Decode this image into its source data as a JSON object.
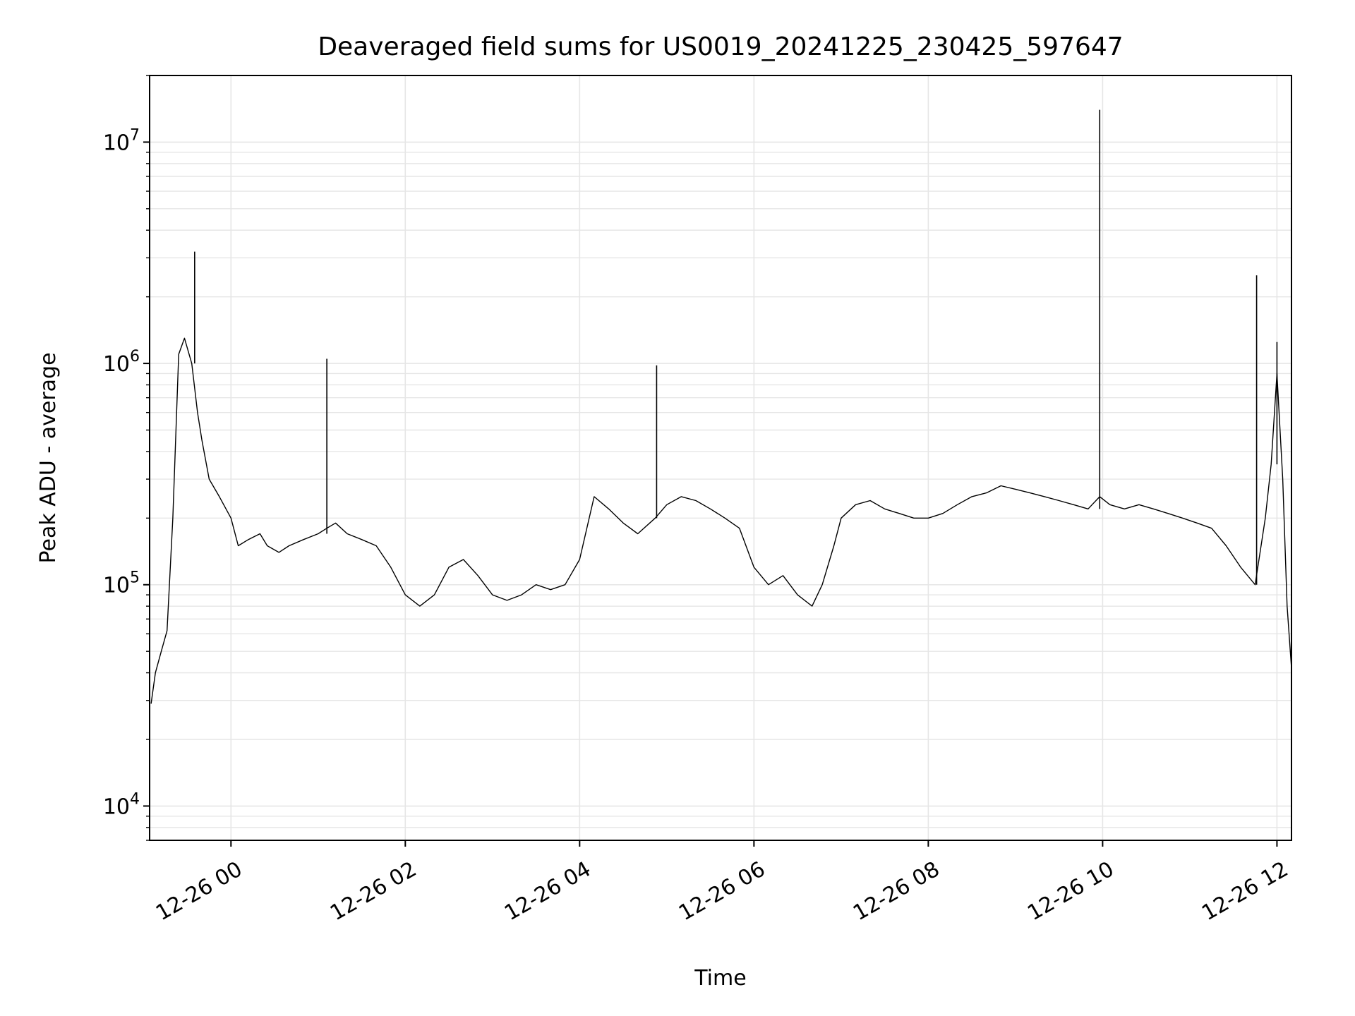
{
  "chart_data": {
    "type": "line",
    "title": "Deaveraged field sums for US0019_20241225_230425_597647",
    "xlabel": "Time",
    "ylabel": "Peak ADU - average",
    "yscale": "log",
    "ylim": [
      7000,
      20000000
    ],
    "xlim": [
      "2024-12-25 23:04",
      "2024-12-26 12:10"
    ],
    "grid": true,
    "x_tick_labels": [
      "12-26 00",
      "12-26 02",
      "12-26 04",
      "12-26 06",
      "12-26 08",
      "12-26 10",
      "12-26 12"
    ],
    "y_tick_labels": [
      {
        "base": "10",
        "exp": "4",
        "value": 10000
      },
      {
        "base": "10",
        "exp": "5",
        "value": 100000
      },
      {
        "base": "10",
        "exp": "6",
        "value": 1000000
      },
      {
        "base": "10",
        "exp": "7",
        "value": 10000000
      }
    ],
    "line_color": "#000000",
    "grid_color": "#e6e6e6",
    "series": [
      {
        "x": [
          "2024-12-25 23:05",
          "2024-12-25 23:08",
          "2024-12-25 23:12",
          "2024-12-25 23:16",
          "2024-12-25 23:20",
          "2024-12-25 23:24",
          "2024-12-25 23:28",
          "2024-12-25 23:33",
          "2024-12-25 23:37",
          "2024-12-25 23:40",
          "2024-12-25 23:45",
          "2024-12-25 23:52",
          "2024-12-26 00:00",
          "2024-12-26 00:05",
          "2024-12-26 00:12",
          "2024-12-26 00:20",
          "2024-12-26 00:25",
          "2024-12-26 00:33",
          "2024-12-26 00:40",
          "2024-12-26 00:50",
          "2024-12-26 01:00",
          "2024-12-26 01:06",
          "2024-12-26 01:12",
          "2024-12-26 01:20",
          "2024-12-26 01:30",
          "2024-12-26 01:40",
          "2024-12-26 01:50",
          "2024-12-26 02:00",
          "2024-12-26 02:10",
          "2024-12-26 02:20",
          "2024-12-26 02:30",
          "2024-12-26 02:40",
          "2024-12-26 02:50",
          "2024-12-26 03:00",
          "2024-12-26 03:10",
          "2024-12-26 03:20",
          "2024-12-26 03:30",
          "2024-12-26 03:40",
          "2024-12-26 03:50",
          "2024-12-26 04:00",
          "2024-12-26 04:10",
          "2024-12-26 04:20",
          "2024-12-26 04:30",
          "2024-12-26 04:40",
          "2024-12-26 04:52",
          "2024-12-26 05:00",
          "2024-12-26 05:10",
          "2024-12-26 05:20",
          "2024-12-26 05:30",
          "2024-12-26 05:40",
          "2024-12-26 05:50",
          "2024-12-26 06:00",
          "2024-12-26 06:10",
          "2024-12-26 06:20",
          "2024-12-26 06:30",
          "2024-12-26 06:40",
          "2024-12-26 06:47",
          "2024-12-26 06:55",
          "2024-12-26 07:00",
          "2024-12-26 07:10",
          "2024-12-26 07:20",
          "2024-12-26 07:30",
          "2024-12-26 07:40",
          "2024-12-26 07:50",
          "2024-12-26 08:00",
          "2024-12-26 08:10",
          "2024-12-26 08:20",
          "2024-12-26 08:30",
          "2024-12-26 08:40",
          "2024-12-26 08:50",
          "2024-12-26 09:00",
          "2024-12-26 09:10",
          "2024-12-26 09:20",
          "2024-12-26 09:30",
          "2024-12-26 09:40",
          "2024-12-26 09:50",
          "2024-12-26 09:58",
          "2024-12-26 10:05",
          "2024-12-26 10:15",
          "2024-12-26 10:25",
          "2024-12-26 10:35",
          "2024-12-26 10:45",
          "2024-12-26 10:55",
          "2024-12-26 11:05",
          "2024-12-26 11:15",
          "2024-12-26 11:25",
          "2024-12-26 11:35",
          "2024-12-26 11:45",
          "2024-12-26 11:52",
          "2024-12-26 11:56",
          "2024-12-26 12:00",
          "2024-12-26 12:04",
          "2024-12-26 12:07",
          "2024-12-26 12:10"
        ],
        "y": [
          29000,
          40000,
          50000,
          62000,
          200000,
          1100000,
          1300000,
          1000000,
          600000,
          450000,
          300000,
          250000,
          200000,
          150000,
          160000,
          170000,
          150000,
          140000,
          150000,
          160000,
          170000,
          180000,
          190000,
          170000,
          160000,
          150000,
          120000,
          90000,
          80000,
          90000,
          120000,
          130000,
          110000,
          90000,
          85000,
          90000,
          100000,
          95000,
          100000,
          130000,
          250000,
          220000,
          190000,
          170000,
          200000,
          230000,
          250000,
          240000,
          220000,
          200000,
          180000,
          120000,
          100000,
          110000,
          90000,
          80000,
          100000,
          150000,
          200000,
          230000,
          240000,
          220000,
          210000,
          200000,
          200000,
          210000,
          230000,
          250000,
          260000,
          280000,
          270000,
          260000,
          250000,
          240000,
          230000,
          220000,
          250000,
          230000,
          220000,
          230000,
          220000,
          210000,
          200000,
          190000,
          180000,
          150000,
          120000,
          100000,
          200000,
          350000,
          900000,
          300000,
          80000,
          42000
        ]
      },
      {
        "name_hint": "",
        "spikes": [
          {
            "x": "2024-12-25 23:35",
            "y": 3200000
          },
          {
            "x": "2024-12-26 01:06",
            "y": 1050000
          },
          {
            "x": "2024-12-26 04:53",
            "y": 980000
          },
          {
            "x": "2024-12-26 09:58",
            "y": 14000000
          },
          {
            "x": "2024-12-26 11:46",
            "y": 2500000
          },
          {
            "x": "2024-12-26 12:00",
            "y": 1250000
          }
        ]
      }
    ]
  }
}
